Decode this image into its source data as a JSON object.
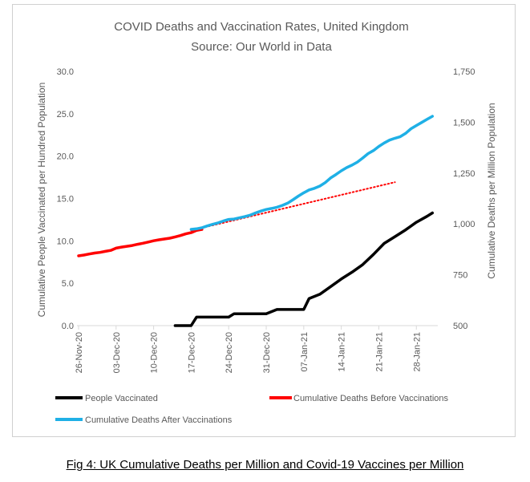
{
  "chart_data": {
    "type": "line",
    "title": "COVID Deaths and Vaccination Rates, United Kingdom",
    "subtitle": "Source: Our World in Data",
    "ylabel_left": "Cumulative People Vaccinated per Hundred Population",
    "ylabel_right": "Cumulative Deaths per Million Population",
    "ylim_left": [
      0,
      30
    ],
    "ylim_right": [
      500,
      1750
    ],
    "yticks_left": [
      "0.0",
      "5.0",
      "10.0",
      "15.0",
      "20.0",
      "25.0",
      "30.0"
    ],
    "yticks_right": [
      "500",
      "750",
      "1,000",
      "1,250",
      "1,500",
      "1,750"
    ],
    "x_tick_labels": [
      "26-Nov-20",
      "03-Dec-20",
      "10-Dec-20",
      "17-Dec-20",
      "24-Dec-20",
      "31-Dec-20",
      "07-Jan-21",
      "14-Jan-21",
      "21-Jan-21",
      "28-Jan-21"
    ],
    "x_tick_days": [
      0,
      7,
      14,
      21,
      28,
      35,
      42,
      49,
      56,
      63
    ],
    "x_range_days": [
      0,
      67
    ],
    "grid": false,
    "legend_position": "bottom",
    "series": [
      {
        "name": "People Vaccinated",
        "color": "#000000",
        "axis": "left",
        "style": "solid",
        "x": [
          18,
          21,
          22,
          28,
          29,
          35,
          37,
          42,
          43,
          45,
          47,
          49,
          51,
          53,
          55,
          57,
          59,
          61,
          63,
          65,
          66
        ],
        "y": [
          0.0,
          0.0,
          1.0,
          1.0,
          1.4,
          1.4,
          1.9,
          1.9,
          3.2,
          3.7,
          4.6,
          5.5,
          6.3,
          7.2,
          8.4,
          9.7,
          10.5,
          11.3,
          12.2,
          12.9,
          13.3
        ]
      },
      {
        "name": "Cumulative Deaths Before Vaccinations",
        "color": "#ff0000",
        "axis": "right",
        "style": "solid",
        "x": [
          0,
          1,
          2,
          3,
          4,
          5,
          6,
          7,
          8,
          9,
          10,
          11,
          12,
          13,
          14,
          15,
          16,
          17,
          18,
          19,
          20,
          21,
          22,
          23
        ],
        "y": [
          843,
          847,
          852,
          857,
          860,
          865,
          870,
          881,
          886,
          890,
          894,
          900,
          905,
          911,
          917,
          922,
          926,
          930,
          936,
          943,
          951,
          957,
          968,
          973
        ]
      },
      {
        "name": "Cumulative Deaths Before Vaccinations (trend)",
        "legend": false,
        "color": "#ff0000",
        "axis": "right",
        "style": "dotted",
        "x": [
          21,
          59
        ],
        "y": [
          968,
          1205
        ]
      },
      {
        "name": "Cumulative Deaths After Vaccinations",
        "color": "#1fb0e6",
        "axis": "right",
        "style": "solid",
        "x": [
          21,
          22,
          23,
          24,
          25,
          26,
          27,
          28,
          29,
          30,
          31,
          32,
          33,
          34,
          35,
          36,
          37,
          38,
          39,
          40,
          41,
          42,
          43,
          44,
          45,
          46,
          47,
          48,
          49,
          50,
          51,
          52,
          53,
          54,
          55,
          56,
          57,
          58,
          59,
          60,
          61,
          62,
          63,
          64,
          65,
          66
        ],
        "y": [
          973,
          976,
          981,
          990,
          998,
          1005,
          1014,
          1022,
          1024,
          1030,
          1036,
          1043,
          1054,
          1063,
          1071,
          1076,
          1082,
          1091,
          1102,
          1119,
          1137,
          1153,
          1167,
          1175,
          1186,
          1203,
          1226,
          1243,
          1261,
          1277,
          1289,
          1304,
          1324,
          1346,
          1361,
          1381,
          1398,
          1412,
          1421,
          1429,
          1445,
          1468,
          1484,
          1499,
          1514,
          1529
        ]
      }
    ]
  },
  "legend": {
    "items": [
      "People Vaccinated",
      "Cumulative Deaths Before Vaccinations",
      "Cumulative Deaths After Vaccinations"
    ]
  },
  "caption": "Fig 4: UK Cumulative Deaths per Million and Covid-19 Vaccines per Million"
}
